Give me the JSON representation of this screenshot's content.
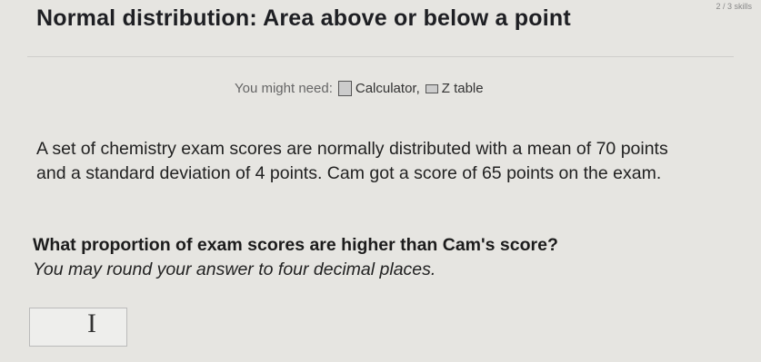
{
  "header": {
    "title": "Normal distribution: Area above or below a point",
    "progress": "2 / 3 skills"
  },
  "tools": {
    "label": "You might need:",
    "items": [
      "Calculator,",
      "Z table"
    ]
  },
  "problem": {
    "statement": "A set of chemistry exam scores are normally distributed with a mean of 70 points and a standard deviation of 4 points. Cam got a score of 65 points on the exam.",
    "question": "What proportion of exam scores are higher than Cam's score?",
    "instruction": "You may round your answer to four decimal places."
  }
}
